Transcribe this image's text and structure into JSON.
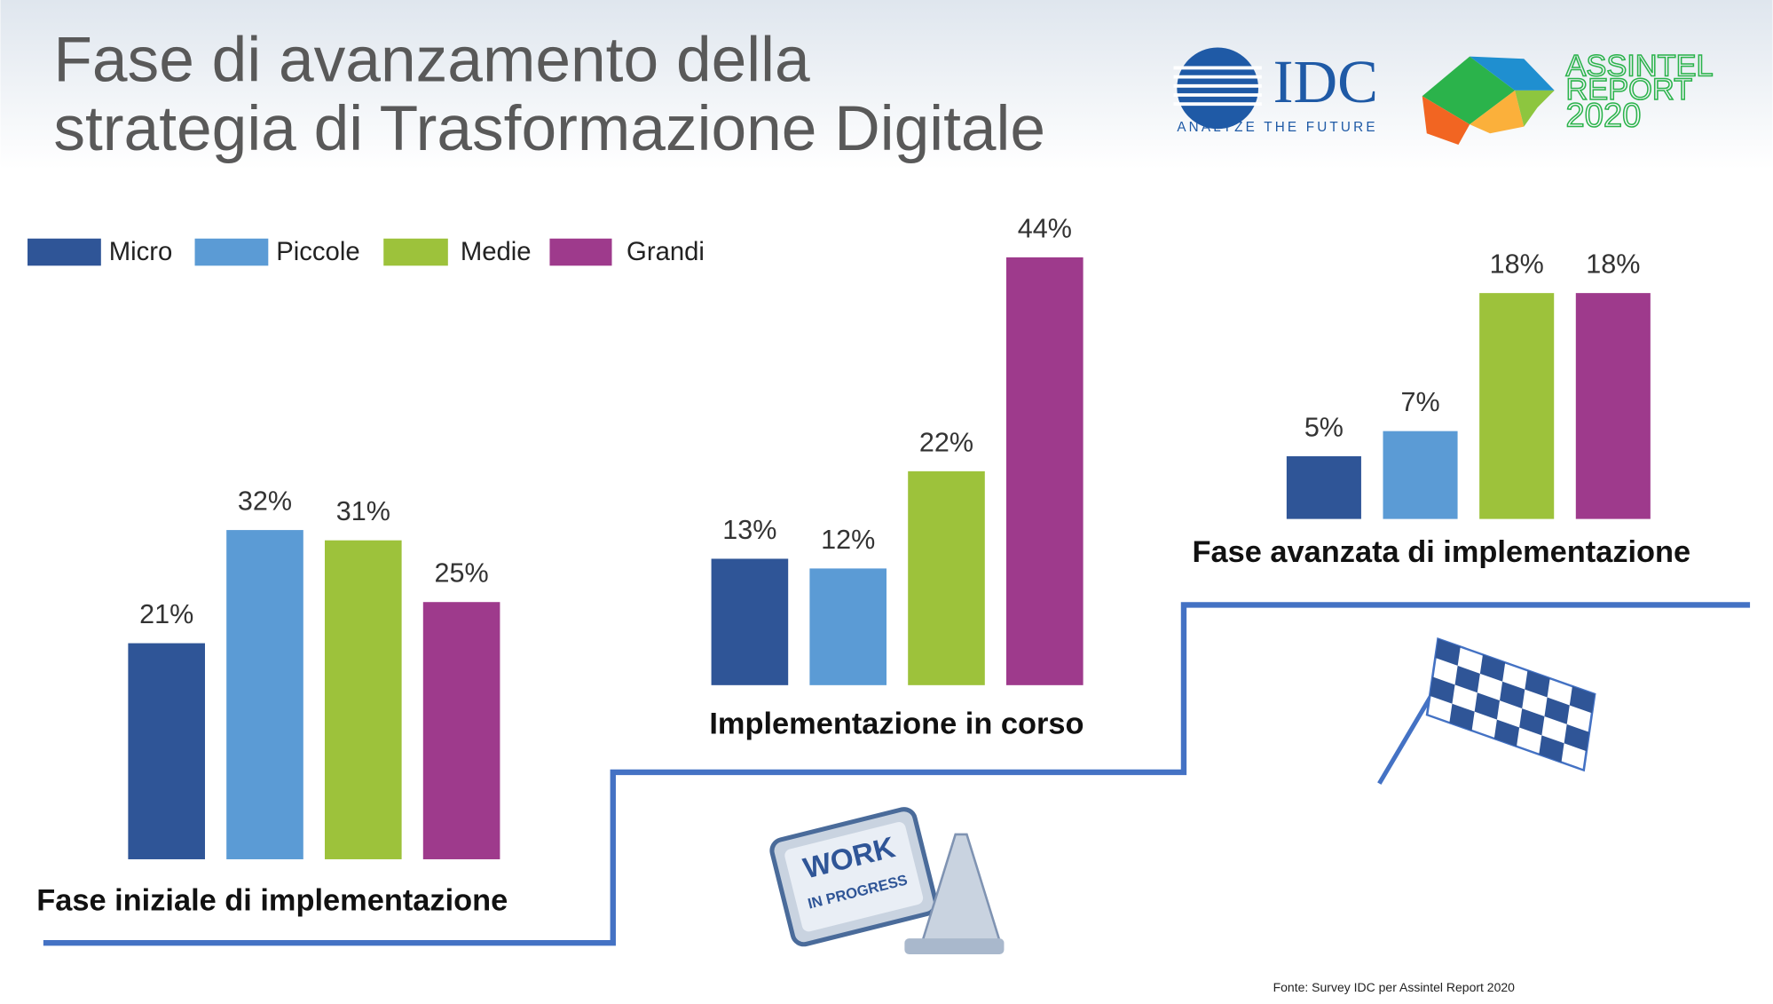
{
  "chart_data": {
    "type": "bar",
    "title": [
      "Fase di avanzamento della",
      "strategia di Trasformazione Digitale"
    ],
    "categories": [
      "Fase iniziale di implementazione",
      "Implementazione in corso",
      "Fase avanzata di implementazione"
    ],
    "series": [
      {
        "name": "Micro",
        "color": "#2f5597",
        "values": [
          21,
          13,
          5
        ],
        "value_labels": [
          "21%",
          "13%",
          "5%"
        ]
      },
      {
        "name": "Piccole",
        "color": "#5b9bd5",
        "values": [
          32,
          12,
          7
        ],
        "value_labels": [
          "32%",
          "12%",
          "7%"
        ]
      },
      {
        "name": "Medie",
        "color": "#9dc23b",
        "values": [
          31,
          22,
          18
        ],
        "value_labels": [
          "31%",
          "22%",
          "18%"
        ]
      },
      {
        "name": "Grandi",
        "color": "#9e3a8c",
        "values": [
          25,
          44,
          18
        ],
        "value_labels": [
          "25%",
          "44%",
          "18%"
        ]
      }
    ],
    "legend": "top-left",
    "source": "Fonte: Survey IDC per Assintel Report 2020"
  },
  "logos": {
    "idc": "IDC",
    "idc_tagline": "ANALYZE THE FUTURE",
    "assintel": [
      "ASSINTEL",
      "REPORT",
      "2020"
    ]
  },
  "icon_text": [
    "WORK",
    "IN PROGRESS"
  ]
}
